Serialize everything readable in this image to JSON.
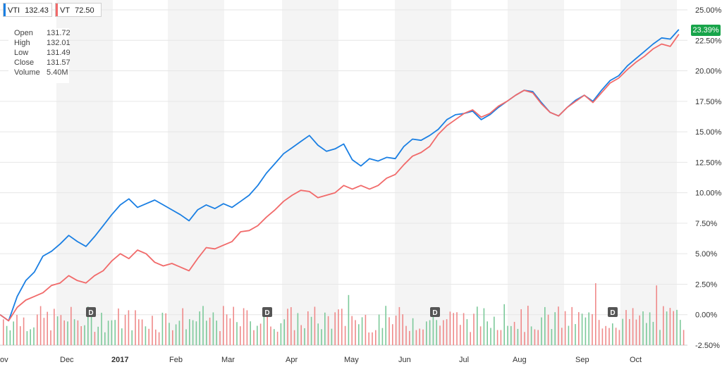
{
  "legend": [
    {
      "symbol": "VTI",
      "price": "132.43",
      "color": "#1a7fe3"
    },
    {
      "symbol": "VT",
      "price": "72.50",
      "color": "#f16a6a"
    }
  ],
  "ohlc": {
    "rows": [
      {
        "label": "Open",
        "value": "131.72"
      },
      {
        "label": "High",
        "value": "132.01"
      },
      {
        "label": "Low",
        "value": "131.49"
      },
      {
        "label": "Close",
        "value": "131.57"
      },
      {
        "label": "Volume",
        "value": "5.40M"
      }
    ]
  },
  "last_badge": "23.39%",
  "chart_data": {
    "type": "line",
    "y_ticks": [
      "25.00%",
      "22.50%",
      "20.00%",
      "17.50%",
      "15.00%",
      "12.50%",
      "10.00%",
      "7.50%",
      "5.00%",
      "2.50%",
      "0.00%",
      "-2.50%"
    ],
    "ylim": [
      -2.5,
      25
    ],
    "x_ticks": [
      "ov",
      "Dec",
      "2017",
      "Feb",
      "Mar",
      "Apr",
      "May",
      "Jun",
      "Jul",
      "Aug",
      "Sep",
      "Oct"
    ],
    "dividend_markers": [
      "D",
      "D",
      "D",
      "D"
    ],
    "series": [
      {
        "name": "VTI",
        "color": "#1a7fe3",
        "points": [
          [
            0.0,
            0
          ],
          [
            0.5,
            -0.5
          ],
          [
            1.0,
            1.5
          ],
          [
            1.5,
            2.8
          ],
          [
            2.0,
            3.5
          ],
          [
            2.5,
            4.8
          ],
          [
            3.0,
            5.2
          ],
          [
            3.5,
            5.8
          ],
          [
            4.0,
            6.5
          ],
          [
            4.5,
            6.0
          ],
          [
            5.0,
            5.6
          ],
          [
            5.5,
            6.4
          ],
          [
            6.0,
            7.3
          ],
          [
            6.5,
            8.2
          ],
          [
            7.0,
            9.0
          ],
          [
            7.5,
            9.5
          ],
          [
            8.0,
            8.8
          ],
          [
            8.5,
            9.1
          ],
          [
            9.0,
            9.4
          ],
          [
            9.5,
            9.0
          ],
          [
            10.0,
            8.6
          ],
          [
            10.5,
            8.2
          ],
          [
            11.0,
            7.7
          ],
          [
            11.5,
            8.6
          ],
          [
            12.0,
            9.0
          ],
          [
            12.5,
            8.7
          ],
          [
            13.0,
            9.1
          ],
          [
            13.5,
            8.8
          ],
          [
            14.0,
            9.3
          ],
          [
            14.5,
            9.8
          ],
          [
            15.0,
            10.6
          ],
          [
            15.5,
            11.6
          ],
          [
            16.0,
            12.4
          ],
          [
            16.5,
            13.2
          ],
          [
            17.0,
            13.7
          ],
          [
            17.5,
            14.2
          ],
          [
            18.0,
            14.7
          ],
          [
            18.5,
            13.9
          ],
          [
            19.0,
            13.4
          ],
          [
            19.5,
            13.6
          ],
          [
            20.0,
            14.0
          ],
          [
            20.5,
            12.7
          ],
          [
            21.0,
            12.2
          ],
          [
            21.5,
            12.8
          ],
          [
            22.0,
            12.6
          ],
          [
            22.5,
            12.9
          ],
          [
            23.0,
            12.8
          ],
          [
            23.5,
            13.8
          ],
          [
            24.0,
            14.4
          ],
          [
            24.5,
            14.3
          ],
          [
            25.0,
            14.7
          ],
          [
            25.5,
            15.2
          ],
          [
            26.0,
            16.0
          ],
          [
            26.5,
            16.4
          ],
          [
            27.0,
            16.5
          ],
          [
            27.5,
            16.7
          ],
          [
            28.0,
            16.0
          ],
          [
            28.5,
            16.4
          ],
          [
            29.0,
            17.0
          ],
          [
            29.5,
            17.5
          ],
          [
            30.0,
            18.0
          ],
          [
            30.5,
            18.4
          ],
          [
            31.0,
            18.3
          ],
          [
            31.5,
            17.4
          ],
          [
            32.0,
            16.6
          ],
          [
            32.5,
            16.3
          ],
          [
            33.0,
            17.0
          ],
          [
            33.5,
            17.6
          ],
          [
            34.0,
            18.0
          ],
          [
            34.5,
            17.5
          ],
          [
            35.0,
            18.4
          ],
          [
            35.5,
            19.2
          ],
          [
            36.0,
            19.6
          ],
          [
            36.5,
            20.4
          ],
          [
            37.0,
            21.0
          ],
          [
            37.5,
            21.6
          ],
          [
            38.0,
            22.2
          ],
          [
            38.5,
            22.7
          ],
          [
            39.0,
            22.6
          ],
          [
            39.5,
            23.39
          ]
        ]
      },
      {
        "name": "VT",
        "color": "#f16a6a",
        "points": [
          [
            0.0,
            0
          ],
          [
            0.5,
            -0.5
          ],
          [
            1.0,
            0.6
          ],
          [
            1.5,
            1.2
          ],
          [
            2.0,
            1.5
          ],
          [
            2.5,
            1.8
          ],
          [
            3.0,
            2.4
          ],
          [
            3.5,
            2.6
          ],
          [
            4.0,
            3.2
          ],
          [
            4.5,
            2.8
          ],
          [
            5.0,
            2.6
          ],
          [
            5.5,
            3.2
          ],
          [
            6.0,
            3.6
          ],
          [
            6.5,
            4.4
          ],
          [
            7.0,
            5.0
          ],
          [
            7.5,
            4.6
          ],
          [
            8.0,
            5.3
          ],
          [
            8.5,
            5.0
          ],
          [
            9.0,
            4.3
          ],
          [
            9.5,
            4.0
          ],
          [
            10.0,
            4.2
          ],
          [
            10.5,
            3.9
          ],
          [
            11.0,
            3.6
          ],
          [
            11.5,
            4.6
          ],
          [
            12.0,
            5.5
          ],
          [
            12.5,
            5.4
          ],
          [
            13.0,
            5.7
          ],
          [
            13.5,
            6.0
          ],
          [
            14.0,
            6.8
          ],
          [
            14.5,
            6.9
          ],
          [
            15.0,
            7.3
          ],
          [
            15.5,
            8.0
          ],
          [
            16.0,
            8.6
          ],
          [
            16.5,
            9.3
          ],
          [
            17.0,
            9.8
          ],
          [
            17.5,
            10.2
          ],
          [
            18.0,
            10.1
          ],
          [
            18.5,
            9.6
          ],
          [
            19.0,
            9.8
          ],
          [
            19.5,
            10.0
          ],
          [
            20.0,
            10.6
          ],
          [
            20.5,
            10.3
          ],
          [
            21.0,
            10.6
          ],
          [
            21.5,
            10.3
          ],
          [
            22.0,
            10.6
          ],
          [
            22.5,
            11.2
          ],
          [
            23.0,
            11.5
          ],
          [
            23.5,
            12.3
          ],
          [
            24.0,
            13.0
          ],
          [
            24.5,
            13.3
          ],
          [
            25.0,
            13.8
          ],
          [
            25.5,
            14.8
          ],
          [
            26.0,
            15.5
          ],
          [
            26.5,
            16.0
          ],
          [
            27.0,
            16.5
          ],
          [
            27.5,
            16.8
          ],
          [
            28.0,
            16.2
          ],
          [
            28.5,
            16.5
          ],
          [
            29.0,
            17.1
          ],
          [
            29.5,
            17.5
          ],
          [
            30.0,
            18.0
          ],
          [
            30.5,
            18.4
          ],
          [
            31.0,
            18.2
          ],
          [
            31.5,
            17.3
          ],
          [
            32.0,
            16.6
          ],
          [
            32.5,
            16.3
          ],
          [
            33.0,
            17.0
          ],
          [
            33.5,
            17.5
          ],
          [
            34.0,
            18.0
          ],
          [
            34.5,
            17.4
          ],
          [
            35.0,
            18.2
          ],
          [
            35.5,
            19.0
          ],
          [
            36.0,
            19.4
          ],
          [
            36.5,
            20.1
          ],
          [
            37.0,
            20.7
          ],
          [
            37.5,
            21.2
          ],
          [
            38.0,
            21.8
          ],
          [
            38.5,
            22.2
          ],
          [
            39.0,
            22.0
          ],
          [
            39.5,
            23.0
          ]
        ]
      }
    ]
  }
}
